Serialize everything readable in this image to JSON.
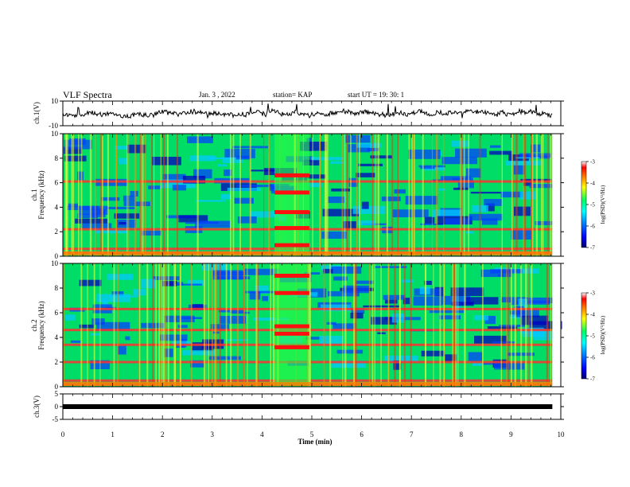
{
  "header": {
    "title": "VLF Spectra",
    "date": "Jan. 3 , 2022",
    "station": "station= KAP",
    "start": "start UT = 19: 30: 1"
  },
  "colors": {
    "trace": "#000000",
    "spectrogram_background": "#00dd66",
    "colormap": [
      "#000088",
      "#0000ff",
      "#00a0ff",
      "#00ffff",
      "#00ff66",
      "#ffff00",
      "#ff8000",
      "#ff0000",
      "#ffffff"
    ]
  },
  "chart_data": [
    {
      "name": "ch1-waveform",
      "type": "line",
      "ylabel": "ch.1(V)",
      "ylim": [
        -10,
        10
      ],
      "yticks": [
        "10",
        "-10"
      ],
      "xlim": [
        0,
        10
      ],
      "x_end": 9.83
    },
    {
      "name": "ch1-spectrogram",
      "type": "heatmap",
      "ylabel_line1": "ch.1",
      "ylabel_line2": "Frequency (kHz)",
      "ylim": [
        0,
        10
      ],
      "yticks": [
        "0",
        "2",
        "4",
        "6",
        "8",
        "10"
      ],
      "xlim": [
        0,
        10
      ],
      "x_end": 9.83,
      "burst": {
        "x_start": 4.25,
        "x_end": 4.95,
        "lines_khz": [
          6.6,
          5.2,
          3.6,
          2.3,
          0.9
        ]
      },
      "band_lines_khz": [
        0.3,
        0.6,
        2.2,
        6.1
      ],
      "colorbar": {
        "label": "log(PSD)(V²/Hz)",
        "ticks": [
          "-3",
          "-4",
          "-5",
          "-6",
          "-7"
        ],
        "range": [
          -7,
          -3
        ]
      }
    },
    {
      "name": "ch2-spectrogram",
      "type": "heatmap",
      "ylabel_line1": "ch.2",
      "ylabel_line2": "Frequency (kHz)",
      "ylim": [
        0,
        10
      ],
      "yticks": [
        "0",
        "2",
        "4",
        "6",
        "8",
        "10"
      ],
      "xlim": [
        0,
        10
      ],
      "x_end": 9.83,
      "burst": {
        "x_start": 4.25,
        "x_end": 4.95,
        "lines_khz": [
          9.0,
          7.6,
          4.9,
          4.3,
          3.2
        ]
      },
      "band_lines_khz": [
        0.2,
        0.5,
        2.0,
        6.3,
        4.6,
        3.4
      ],
      "colorbar": {
        "label": "log(PSD)(V²/Hz)",
        "ticks": [
          "-3",
          "-4",
          "-5",
          "-6",
          "-7"
        ],
        "range": [
          -7,
          -3
        ]
      }
    },
    {
      "name": "ch3-signal",
      "type": "line",
      "ylabel": "ch.3(V)",
      "ylim": [
        -5,
        5
      ],
      "yticks": [
        "5",
        "0",
        "-5"
      ],
      "xlim": [
        0,
        10
      ],
      "x_end": 9.83,
      "level": 0
    }
  ],
  "xaxis": {
    "label": "Time (min)",
    "ticks": [
      "0",
      "1",
      "2",
      "3",
      "4",
      "5",
      "6",
      "7",
      "8",
      "9",
      "10"
    ]
  }
}
